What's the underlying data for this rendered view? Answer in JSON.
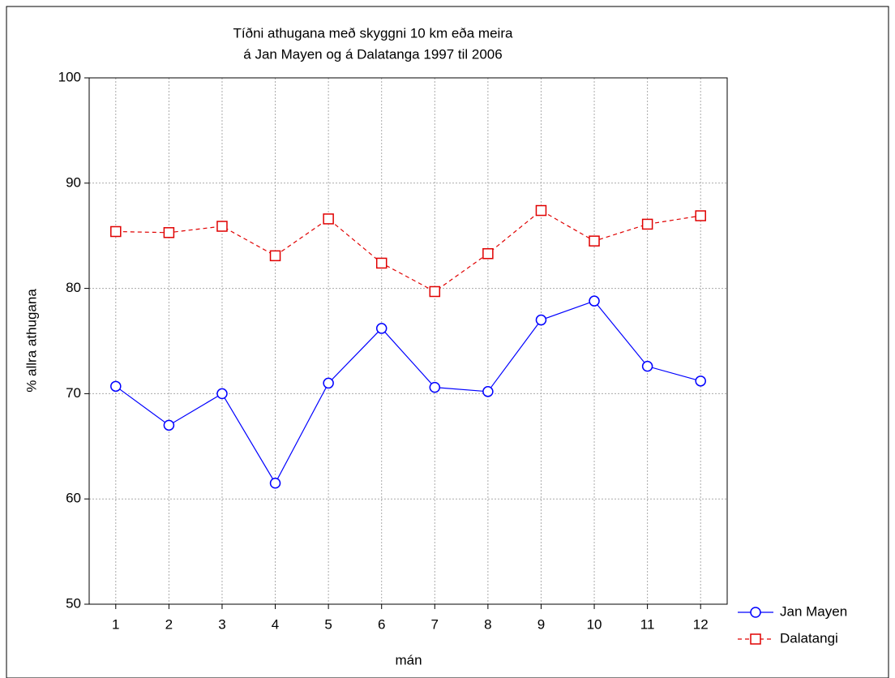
{
  "chart_data": {
    "type": "line",
    "title": [
      "Tíðni athugana með skyggni 10 km eða meira",
      "á Jan Mayen og á Dalatanga 1997 til 2006"
    ],
    "x_label": "mán",
    "y_label": "% allra athugana",
    "x": [
      1,
      2,
      3,
      4,
      5,
      6,
      7,
      8,
      9,
      10,
      11,
      12
    ],
    "series": [
      {
        "name": "Jan Mayen",
        "color": "#0000ff",
        "line_style": "solid",
        "marker": "circle",
        "values": [
          70.7,
          67.0,
          70.0,
          61.5,
          71.0,
          76.2,
          70.6,
          70.2,
          77.0,
          78.8,
          72.6,
          71.2
        ]
      },
      {
        "name": "Dalatangi",
        "color": "#e00000",
        "line_style": "dashed",
        "marker": "square",
        "values": [
          85.4,
          85.3,
          85.9,
          83.1,
          86.6,
          82.4,
          79.7,
          83.3,
          87.4,
          84.5,
          86.1,
          86.9
        ]
      }
    ],
    "xlim": [
      0.5,
      12.5
    ],
    "xticks": [
      1,
      2,
      3,
      4,
      5,
      6,
      7,
      8,
      9,
      10,
      11,
      12
    ],
    "ylim": [
      50,
      100
    ],
    "yticks": [
      50,
      60,
      70,
      80,
      90,
      100
    ],
    "grid": true,
    "legend": "bottom-right"
  }
}
